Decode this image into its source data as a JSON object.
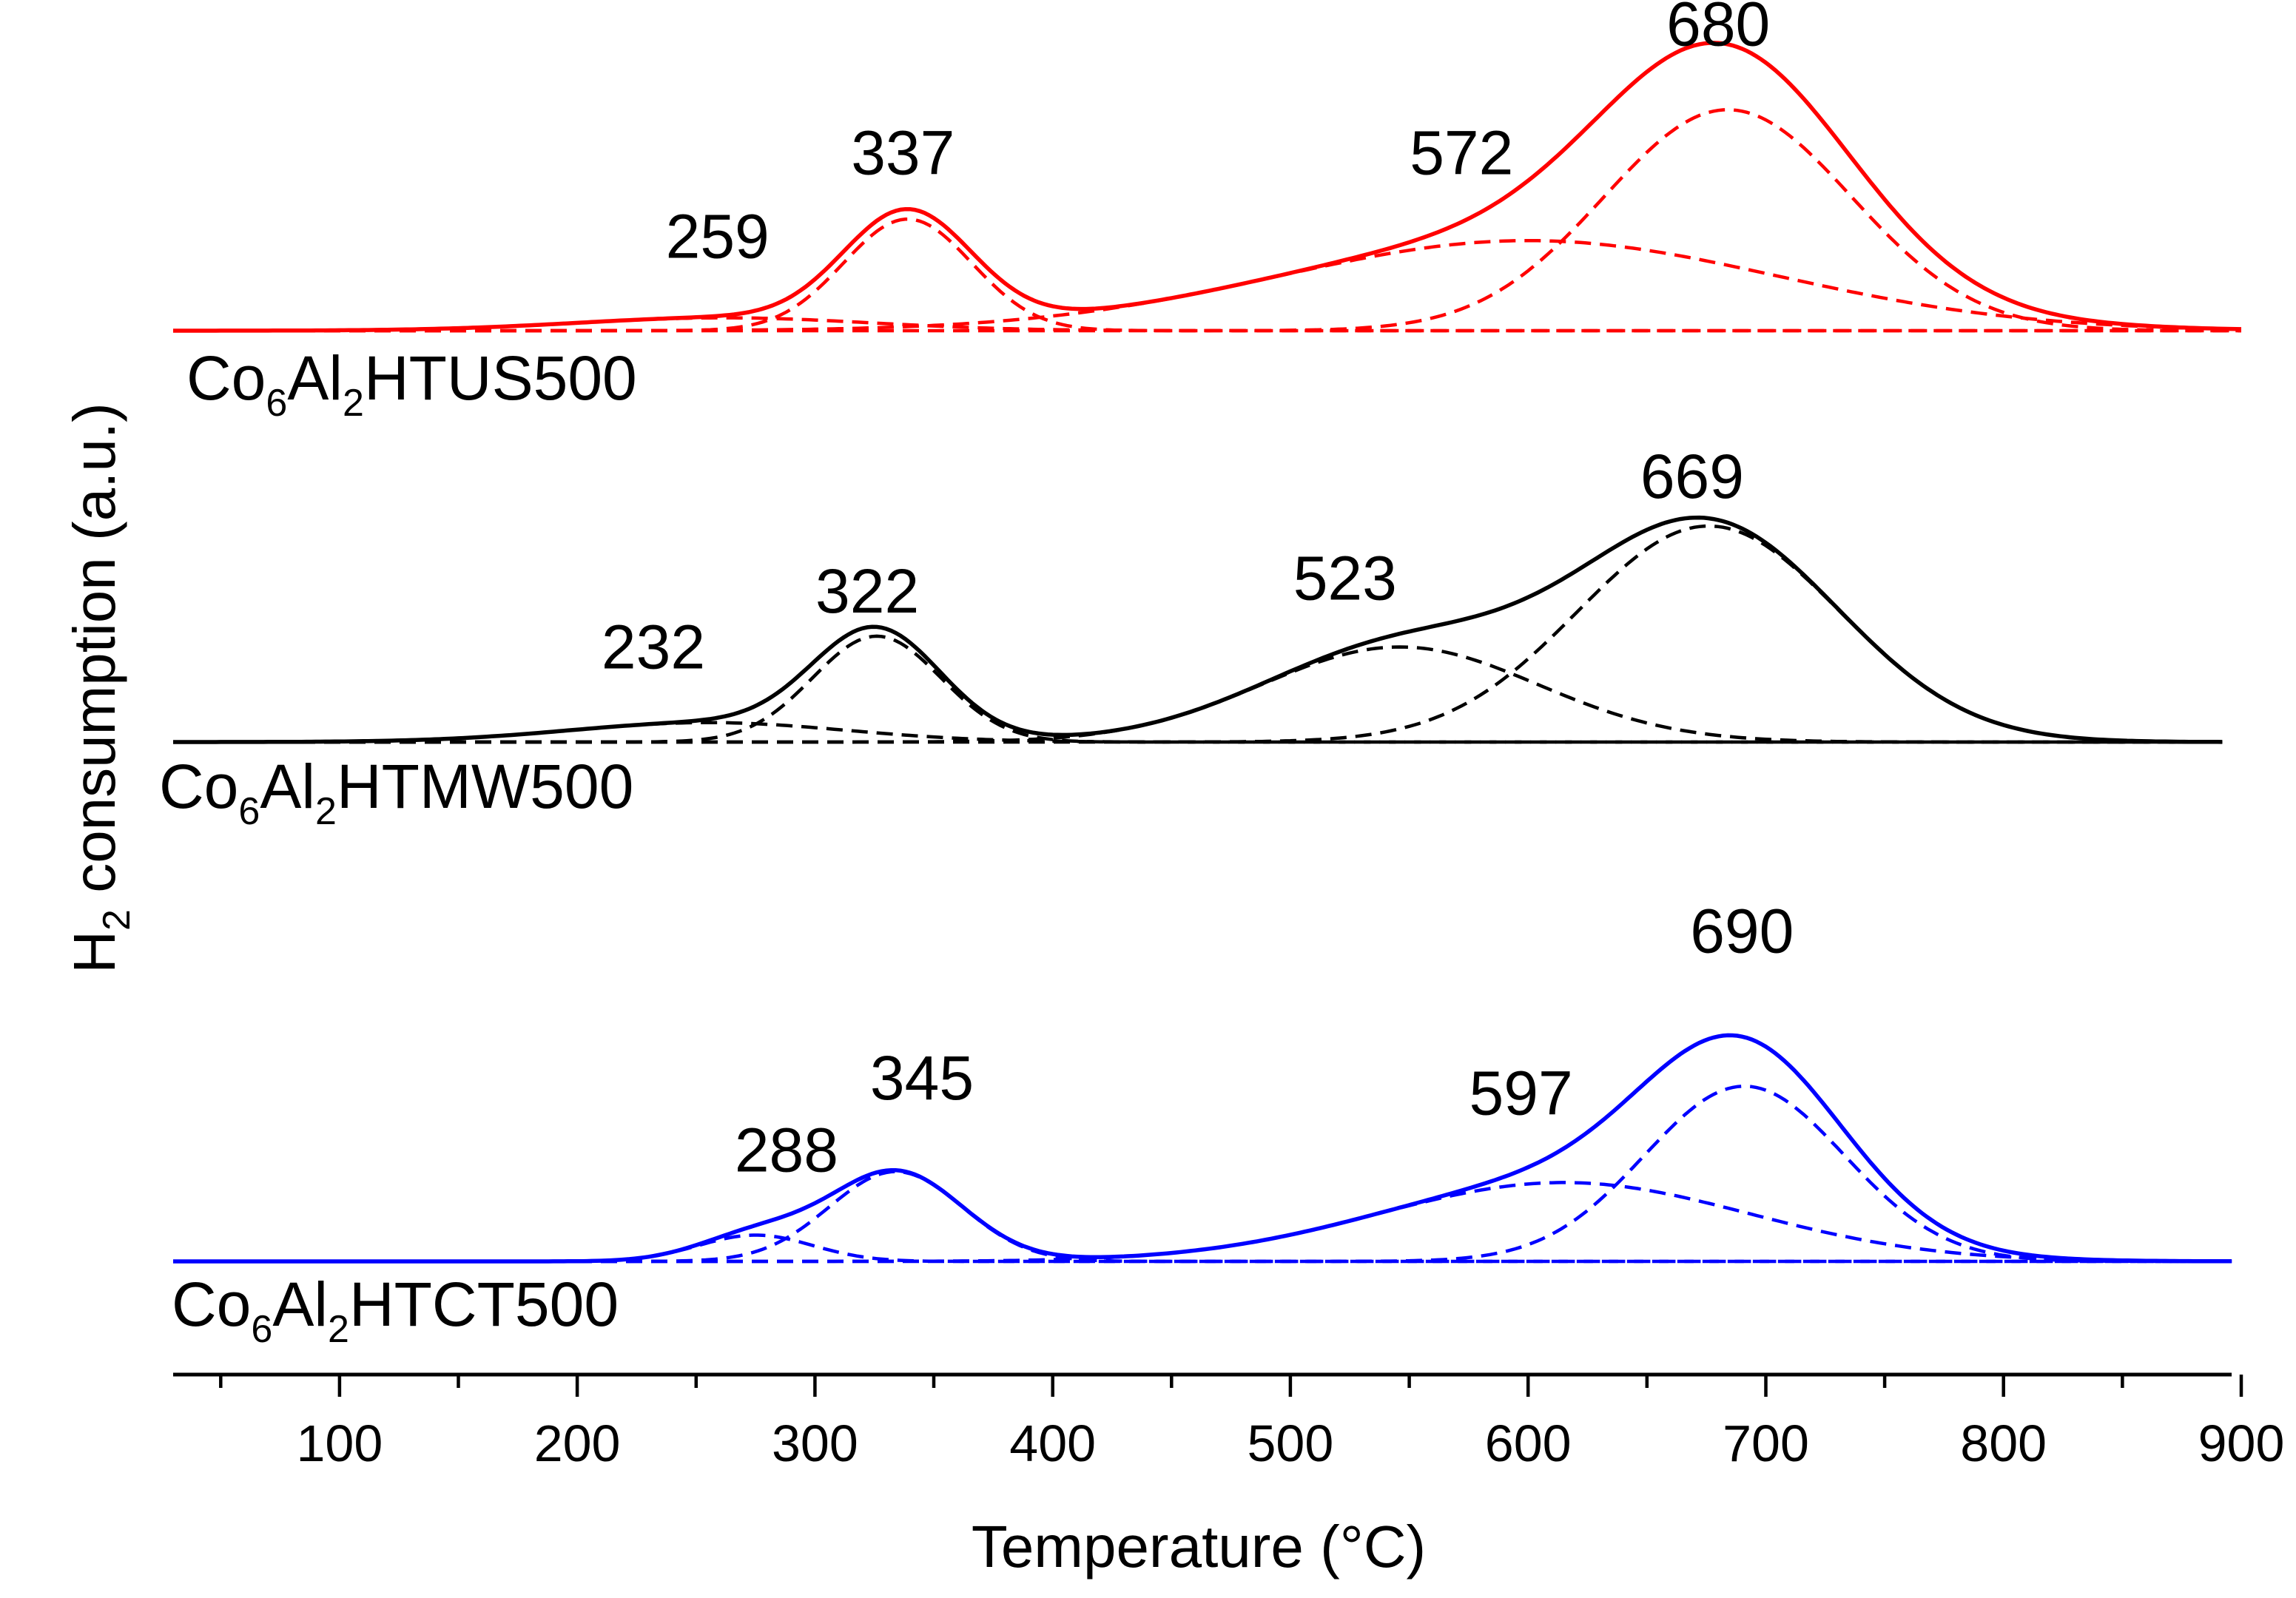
{
  "chart_data": {
    "type": "line",
    "title": "",
    "xlabel": "Temperature (°C)",
    "ylabel": "H2 consumption (a.u.)",
    "ylabel_parts": {
      "pre": "H",
      "sub": "2",
      "post": " consumption (a.u.)"
    },
    "xlim": [
      30,
      900
    ],
    "xticks": [
      100,
      200,
      300,
      400,
      500,
      600,
      700,
      800,
      900
    ],
    "xminor_step": 50,
    "grid": false,
    "legend": "none",
    "series": [
      {
        "name": "Co6Al2HTUS500",
        "label_parts": [
          "Co",
          "6",
          "Al",
          "2",
          "HTUS500"
        ],
        "color": "#ff0000",
        "x_end": 900,
        "baseline": 0,
        "peaks": [
          {
            "label": "259",
            "center": 262,
            "amplitude": 0.06,
            "width": 62,
            "label_x": 259,
            "label_y": 0.34
          },
          {
            "label": "337",
            "center": 339,
            "amplitude": 0.52,
            "width": 27,
            "label_x": 337,
            "label_y": 0.73
          },
          {
            "label": "572",
            "center": 600,
            "amplitude": 0.42,
            "width": 105,
            "label_x": 572,
            "label_y": 0.73
          },
          {
            "label": "680",
            "center": 684,
            "amplitude": 1.03,
            "width": 52,
            "label_x": 680,
            "label_y": 1.33
          }
        ]
      },
      {
        "name": "Co6Al2HTMW500",
        "label_parts": [
          "Co",
          "6",
          "Al",
          "2",
          "HTMW500"
        ],
        "color": "#000000",
        "x_end": 893,
        "baseline": 0,
        "peaks": [
          {
            "label": "232",
            "center": 255,
            "amplitude": 0.09,
            "width": 58,
            "label_x": 232,
            "label_y": 0.34
          },
          {
            "label": "322",
            "center": 326,
            "amplitude": 0.49,
            "width": 27,
            "label_x": 322,
            "label_y": 0.6
          },
          {
            "label": "523",
            "center": 546,
            "amplitude": 0.44,
            "width": 58,
            "label_x": 523,
            "label_y": 0.66
          },
          {
            "label": "669",
            "center": 676,
            "amplitude": 1.0,
            "width": 55,
            "label_x": 669,
            "label_y": 1.13
          }
        ]
      },
      {
        "name": "Co6Al2HTCT500",
        "label_parts": [
          "Co",
          "6",
          "Al",
          "2",
          "HTCT500"
        ],
        "color": "#0000ff",
        "x_end": 896,
        "baseline": 0,
        "peaks": [
          {
            "label": "288",
            "center": 275,
            "amplitude": 0.12,
            "width": 24,
            "label_x": 288,
            "label_y": 0.41
          },
          {
            "label": "345",
            "center": 334,
            "amplitude": 0.41,
            "width": 28,
            "label_x": 345,
            "label_y": 0.74
          },
          {
            "label": "597",
            "center": 615,
            "amplitude": 0.36,
            "width": 78,
            "label_x": 597,
            "label_y": 0.67
          },
          {
            "label": "690",
            "center": 691,
            "amplitude": 0.8,
            "width": 42,
            "label_x": 690,
            "label_y": 1.41
          }
        ]
      }
    ]
  }
}
